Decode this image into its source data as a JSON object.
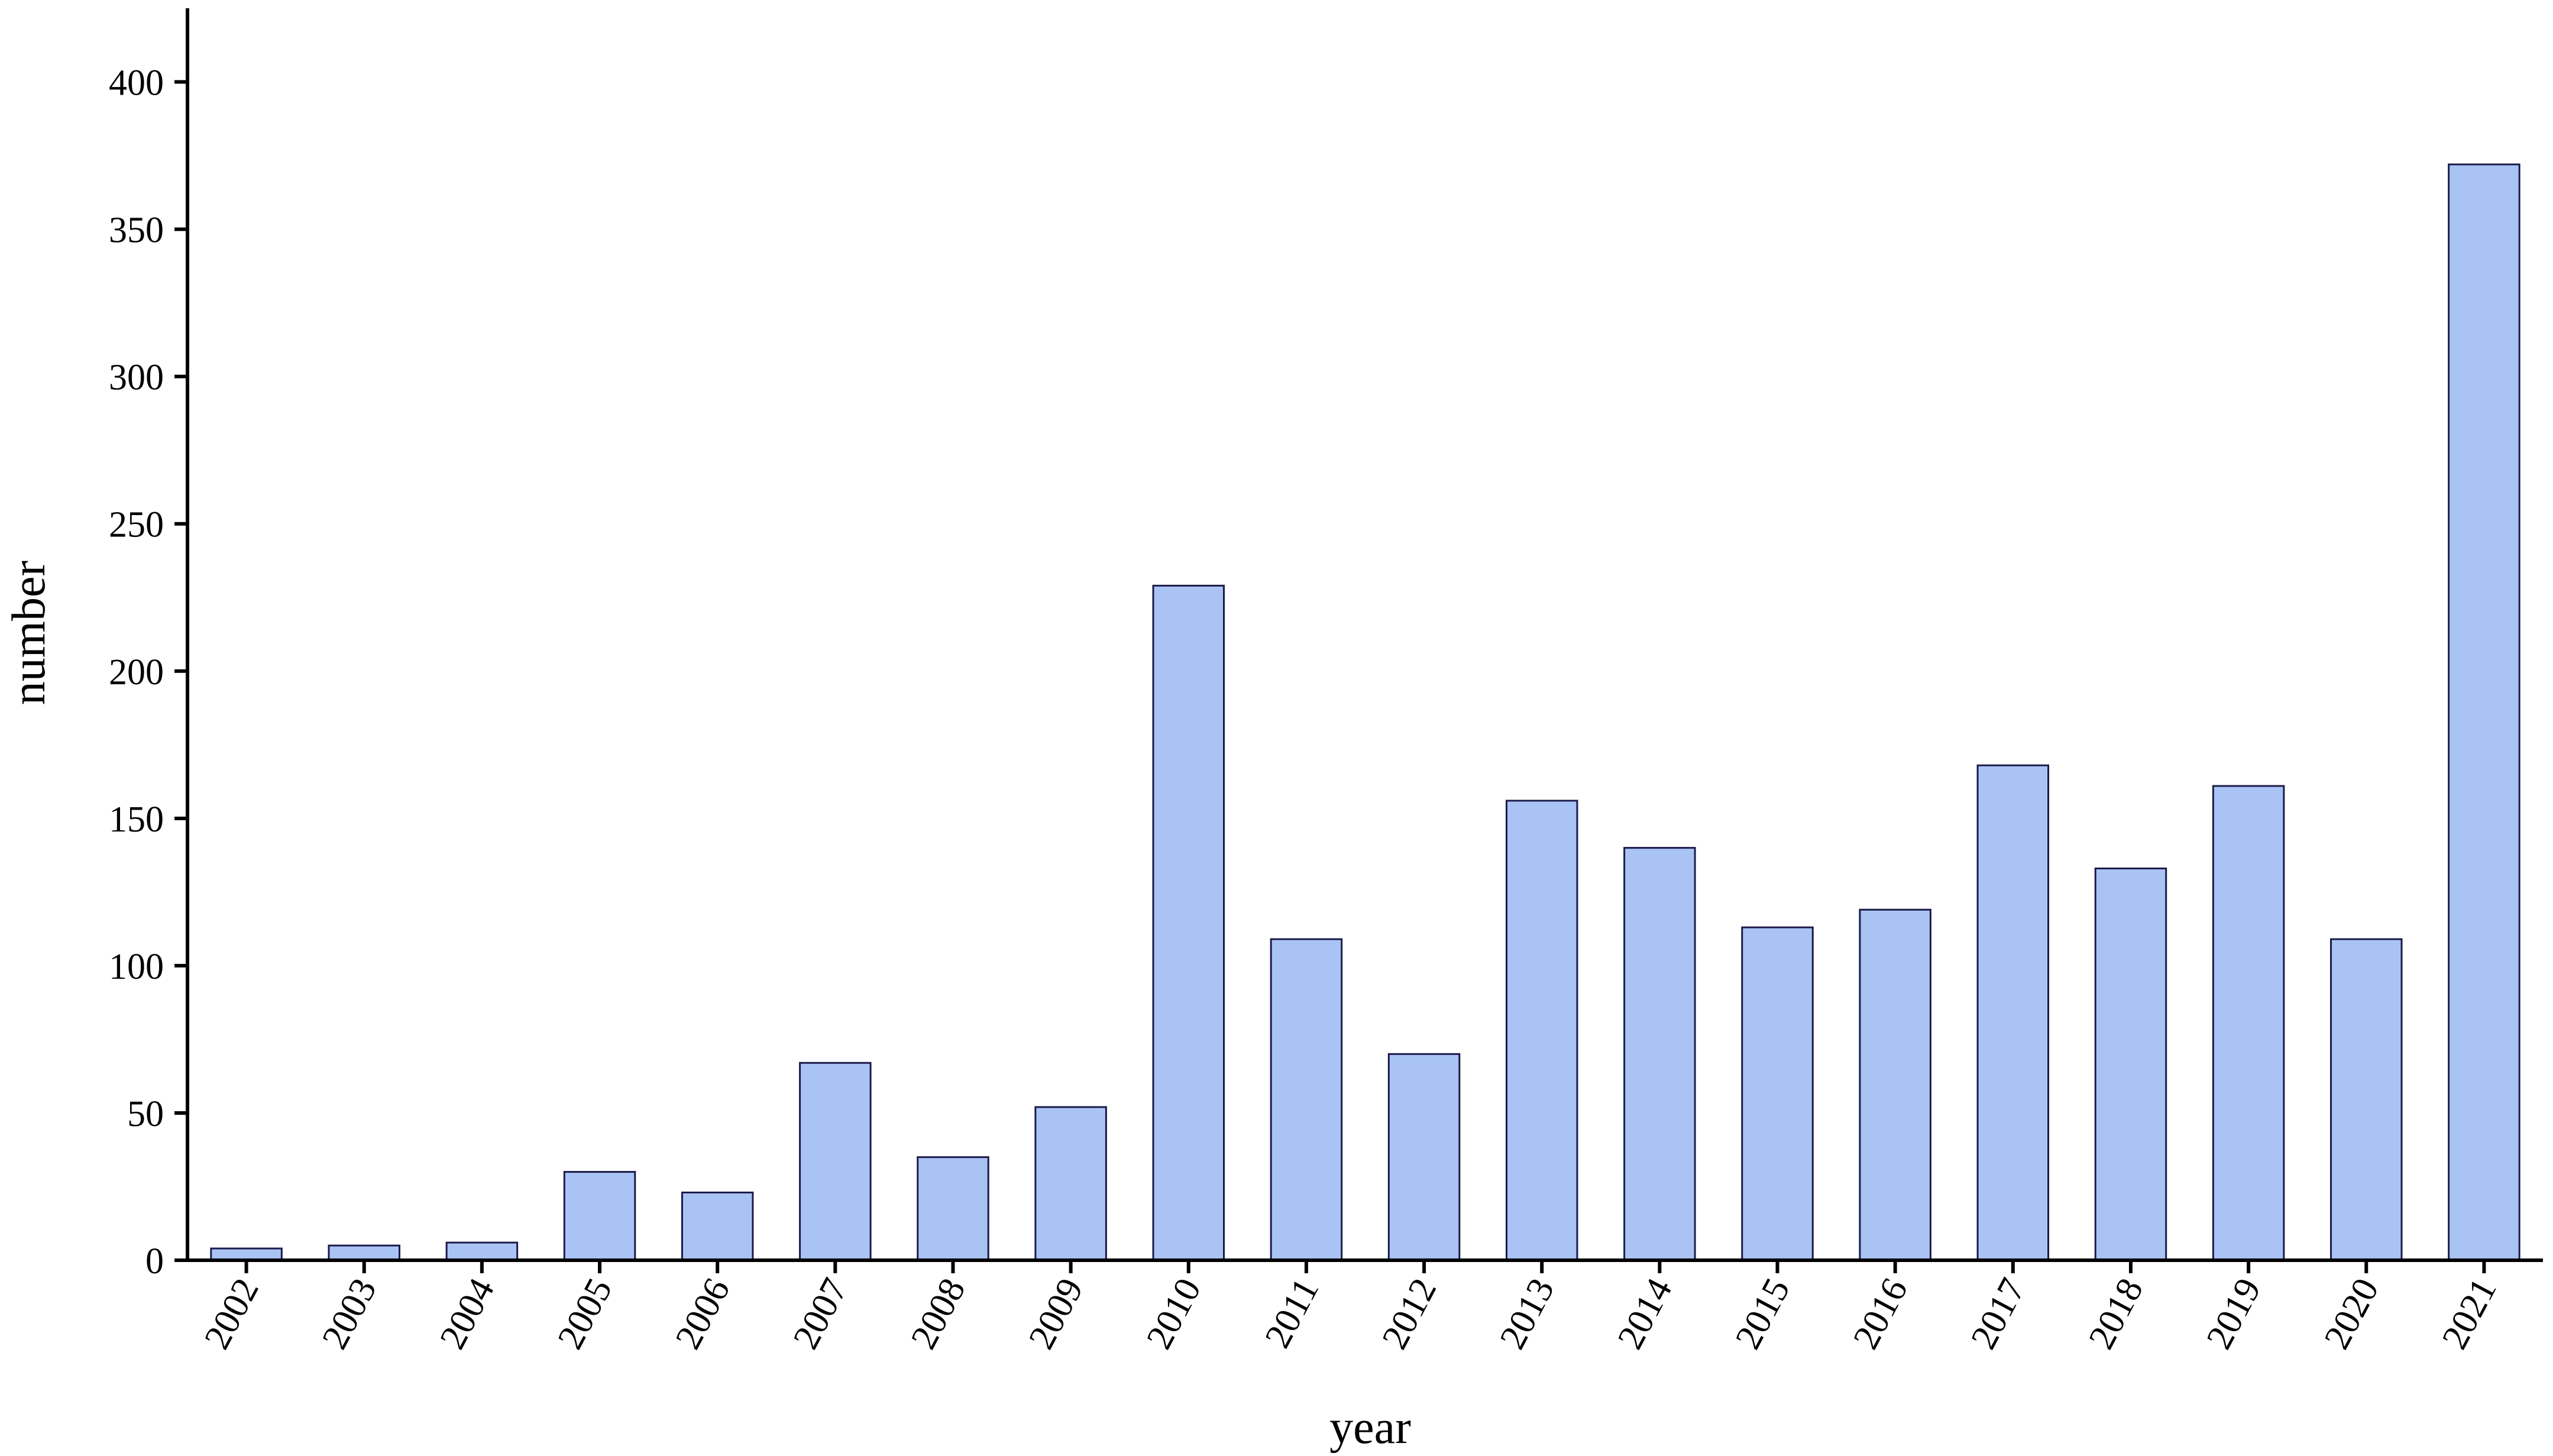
{
  "chart_data": {
    "type": "bar",
    "x_label": "year",
    "y_label": "number",
    "categories": [
      "2002",
      "2003",
      "2004",
      "2005",
      "2006",
      "2007",
      "2008",
      "2009",
      "2010",
      "2011",
      "2012",
      "2013",
      "2014",
      "2015",
      "2016",
      "2017",
      "2018",
      "2019",
      "2020",
      "2021"
    ],
    "values": [
      4,
      5,
      6,
      30,
      23,
      67,
      35,
      52,
      229,
      109,
      70,
      156,
      140,
      113,
      119,
      168,
      133,
      161,
      109,
      372
    ],
    "color": "#a9c4f4",
    "edge_color": "#1c1a4a",
    "ylim": [
      0,
      425
    ],
    "yticks": [
      0,
      50,
      100,
      150,
      200,
      250,
      300,
      350,
      400
    ],
    "grid": false
  }
}
